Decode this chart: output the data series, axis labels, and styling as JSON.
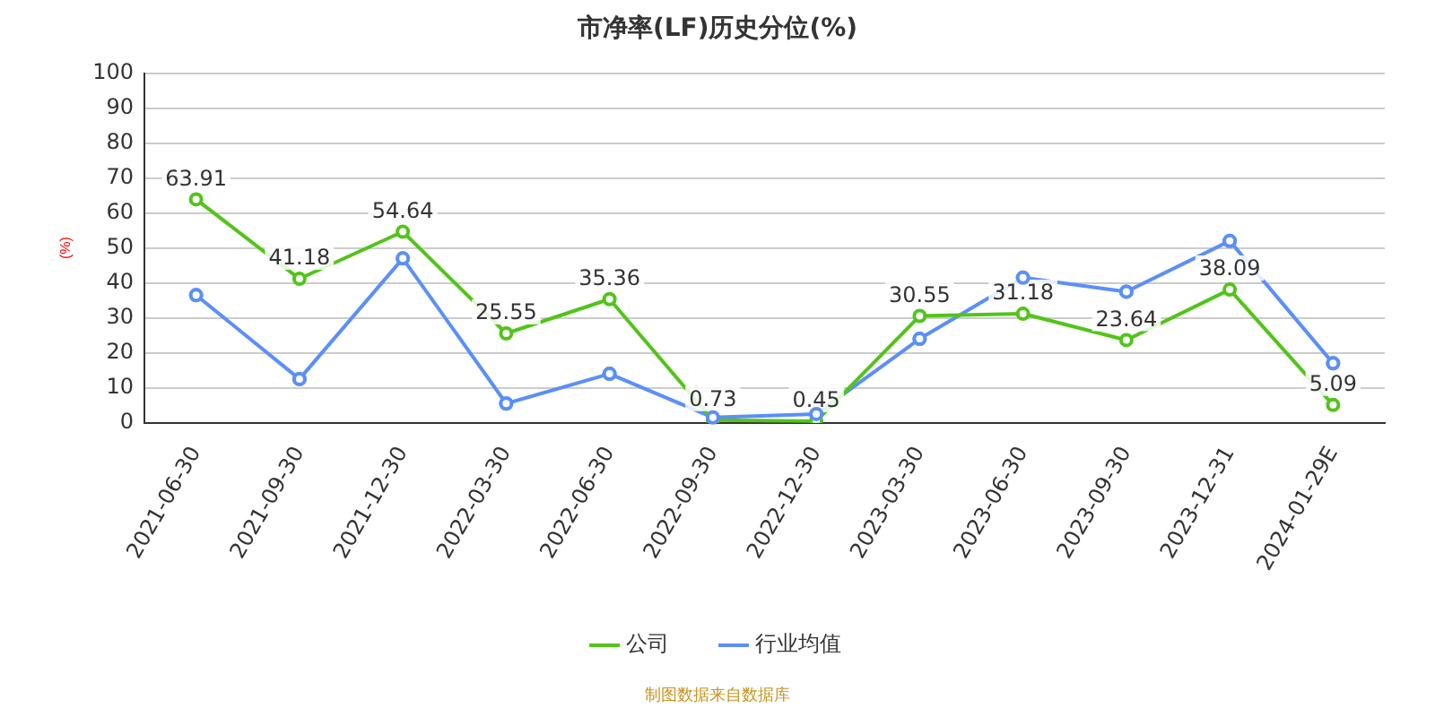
{
  "chart_data": {
    "type": "line",
    "title": "市净率(LF)历史分位(%)",
    "ylabel": "(%)",
    "categories": [
      "2021-06-30",
      "2021-09-30",
      "2021-12-30",
      "2022-03-30",
      "2022-06-30",
      "2022-09-30",
      "2022-12-30",
      "2023-03-30",
      "2023-06-30",
      "2023-09-30",
      "2023-12-31",
      "2024-01-29E"
    ],
    "series": [
      {
        "name": "公司",
        "color": "#52c41a",
        "values": [
          63.91,
          41.18,
          54.64,
          25.55,
          35.36,
          0.73,
          0.45,
          30.55,
          31.18,
          23.64,
          38.09,
          5.09
        ],
        "value_labels": [
          "63.91",
          "41.18",
          "54.64",
          "25.55",
          "35.36",
          "0.73",
          "0.45",
          "30.55",
          "31.18",
          "23.64",
          "38.09",
          "5.09"
        ]
      },
      {
        "name": "行业均值",
        "color": "#5b8ff9",
        "values": [
          36.5,
          12.5,
          47,
          5.5,
          14,
          1.5,
          2.5,
          24,
          41.5,
          37.5,
          52,
          17
        ]
      }
    ],
    "ylim": [
      0,
      100
    ],
    "yticks": [
      0,
      10,
      20,
      30,
      40,
      50,
      60,
      70,
      80,
      90,
      100
    ],
    "grid": "y",
    "legend": "bottom",
    "marker": "circle",
    "line_style": "solid",
    "annotations": [
      "制图数据来自数据库"
    ]
  }
}
